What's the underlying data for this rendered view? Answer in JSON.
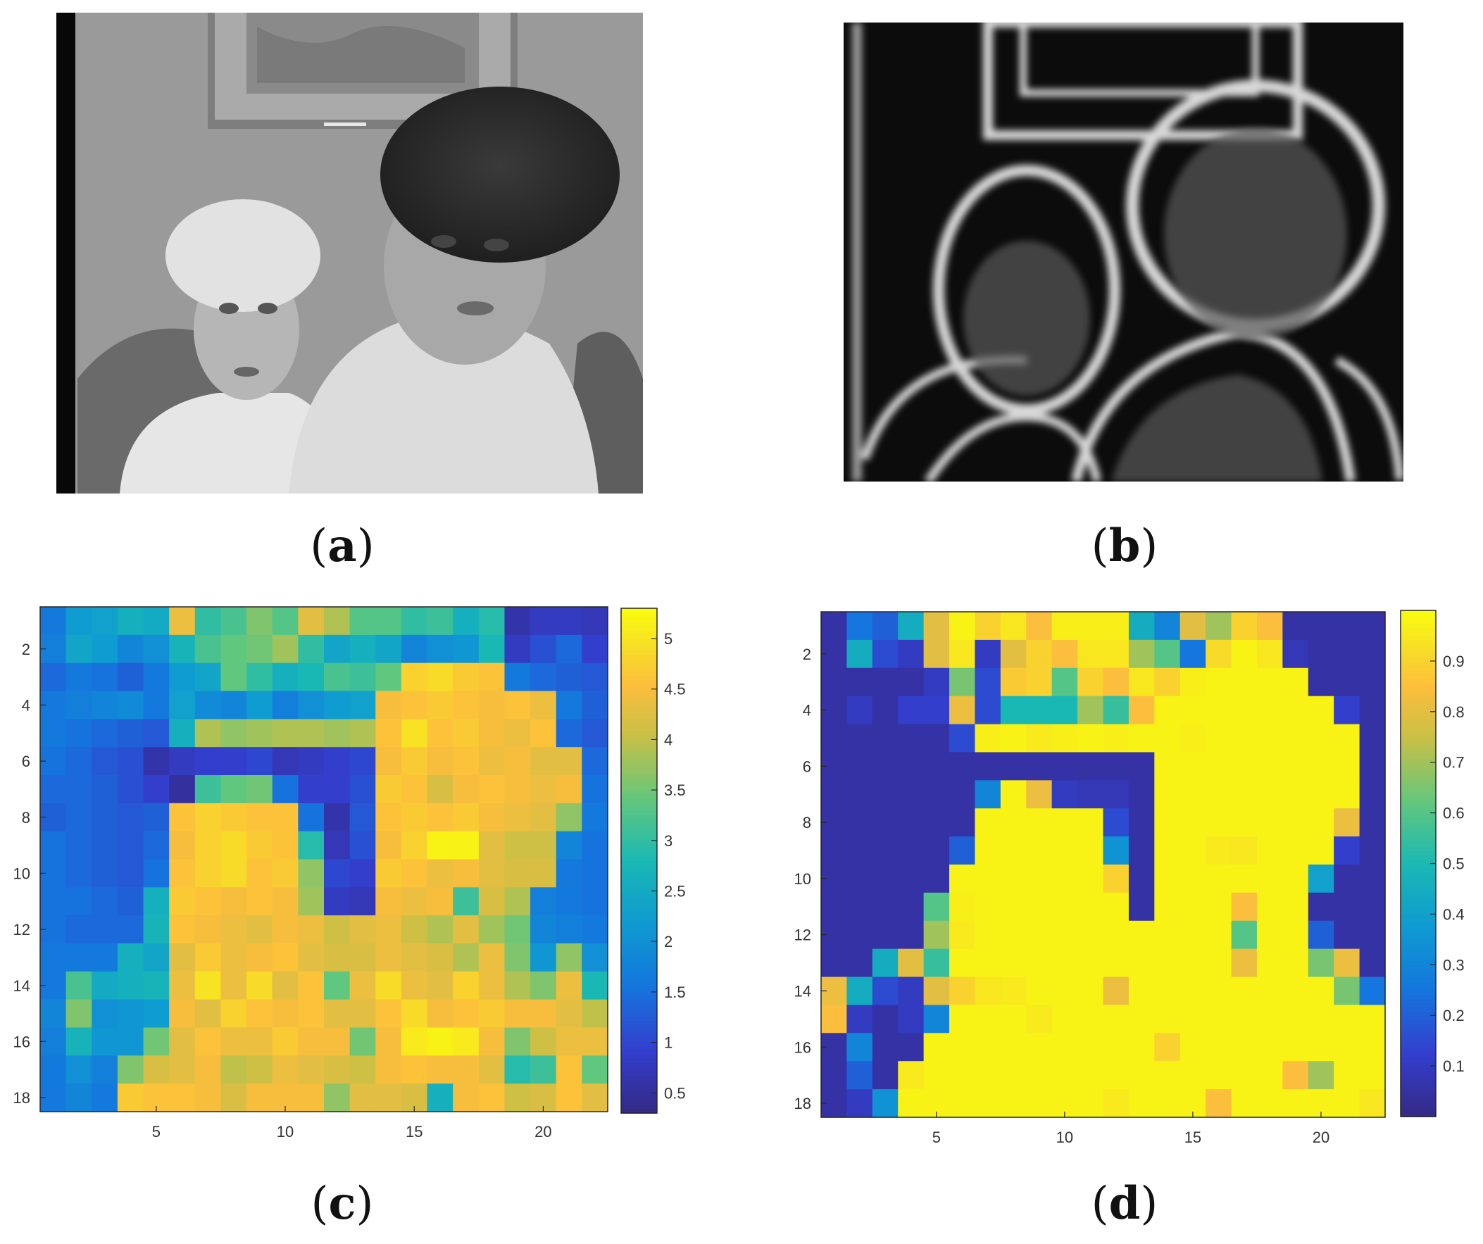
{
  "panels": {
    "a": {
      "paren_open": "(",
      "letter": "a",
      "paren_close": ")"
    },
    "b": {
      "paren_open": "(",
      "letter": "b",
      "paren_close": ")"
    },
    "c": {
      "paren_open": "(",
      "letter": "c",
      "paren_close": ")"
    },
    "d": {
      "paren_open": "(",
      "letter": "d",
      "paren_close": ")"
    }
  },
  "chart_data": [
    {
      "type": "heatmap",
      "panel": "c",
      "colormap": "parula",
      "xlim": [
        0.5,
        22.5
      ],
      "ylim": [
        18.5,
        0.5
      ],
      "xticks": [
        5,
        10,
        15,
        20
      ],
      "yticks": [
        2,
        4,
        6,
        8,
        10,
        12,
        14,
        16,
        18
      ],
      "clim": [
        0.3,
        5.3
      ],
      "colorbar_ticks": [
        0.5,
        1,
        1.5,
        2,
        2.5,
        3,
        3.5,
        4,
        4.5,
        5
      ],
      "rows": [
        [
          1.6,
          2.2,
          2.3,
          2.6,
          2.5,
          4.4,
          3.0,
          3.2,
          3.6,
          3.3,
          4.3,
          3.9,
          3.3,
          3.3,
          3.0,
          3.1,
          2.6,
          2.9,
          0.6,
          0.8,
          0.8,
          0.7
        ],
        [
          1.7,
          2.4,
          2.2,
          1.8,
          2.0,
          2.7,
          3.2,
          3.4,
          3.5,
          3.8,
          3.0,
          2.4,
          2.6,
          2.4,
          1.8,
          2.0,
          2.1,
          2.8,
          0.8,
          1.1,
          1.4,
          0.9
        ],
        [
          1.4,
          1.6,
          1.5,
          1.3,
          1.6,
          2.2,
          2.4,
          3.4,
          3.0,
          2.6,
          2.8,
          3.2,
          3.1,
          3.4,
          4.8,
          4.9,
          4.7,
          4.6,
          1.6,
          1.4,
          1.3,
          1.2
        ],
        [
          1.6,
          1.7,
          1.8,
          1.9,
          1.6,
          2.3,
          1.9,
          1.8,
          2.2,
          1.7,
          2.0,
          2.2,
          2.3,
          4.5,
          4.6,
          4.7,
          4.6,
          4.5,
          4.6,
          4.4,
          1.6,
          1.3
        ],
        [
          1.6,
          1.5,
          1.4,
          1.3,
          1.2,
          2.6,
          3.9,
          3.7,
          3.8,
          3.9,
          3.9,
          3.8,
          3.9,
          4.6,
          5.0,
          4.6,
          4.7,
          4.5,
          4.4,
          4.6,
          1.4,
          1.2
        ],
        [
          1.5,
          1.4,
          1.2,
          1.1,
          0.6,
          0.8,
          0.9,
          0.9,
          1.0,
          0.7,
          0.8,
          0.9,
          1.0,
          4.5,
          4.7,
          4.5,
          4.6,
          4.4,
          4.5,
          4.3,
          4.3,
          1.4
        ],
        [
          1.4,
          1.4,
          1.3,
          1.1,
          0.9,
          0.5,
          3.1,
          3.4,
          3.5,
          1.5,
          0.9,
          0.9,
          1.1,
          4.7,
          4.6,
          4.2,
          4.5,
          4.6,
          4.5,
          4.4,
          4.5,
          1.5
        ],
        [
          1.3,
          1.4,
          1.3,
          1.2,
          1.3,
          4.6,
          4.8,
          4.7,
          4.6,
          4.6,
          1.5,
          0.6,
          1.2,
          4.6,
          4.7,
          4.6,
          4.7,
          4.5,
          4.4,
          4.3,
          3.7,
          1.6
        ],
        [
          1.5,
          1.4,
          1.3,
          1.2,
          1.4,
          4.5,
          4.8,
          4.9,
          4.7,
          4.6,
          2.9,
          0.7,
          1.1,
          4.5,
          4.8,
          5.2,
          5.2,
          4.3,
          4.1,
          4.1,
          1.8,
          1.5
        ],
        [
          1.5,
          1.4,
          1.3,
          1.2,
          1.5,
          4.6,
          4.8,
          4.9,
          4.6,
          4.7,
          3.7,
          1.0,
          0.9,
          4.7,
          4.6,
          4.4,
          4.5,
          4.3,
          4.2,
          4.2,
          1.6,
          1.5
        ],
        [
          1.5,
          1.5,
          1.4,
          1.3,
          2.6,
          4.7,
          4.6,
          4.5,
          4.6,
          4.5,
          3.8,
          0.8,
          0.7,
          4.5,
          4.4,
          4.5,
          3.1,
          4.2,
          3.9,
          1.7,
          1.6,
          1.5
        ],
        [
          1.5,
          1.4,
          1.4,
          1.4,
          2.7,
          4.6,
          4.5,
          4.4,
          4.3,
          4.5,
          4.4,
          4.1,
          4.3,
          4.4,
          4.1,
          3.9,
          4.3,
          3.8,
          3.5,
          1.8,
          1.7,
          1.6
        ],
        [
          1.6,
          1.6,
          1.6,
          2.6,
          2.4,
          4.3,
          4.7,
          4.4,
          4.5,
          4.6,
          4.3,
          4.2,
          4.2,
          4.4,
          4.3,
          4.2,
          3.9,
          4.4,
          3.6,
          2.1,
          3.7,
          2.0
        ],
        [
          1.6,
          3.2,
          2.5,
          2.6,
          2.7,
          4.4,
          5.0,
          4.4,
          4.9,
          4.3,
          4.6,
          3.4,
          4.4,
          4.9,
          4.4,
          4.3,
          4.8,
          4.4,
          3.9,
          3.6,
          4.4,
          2.8
        ],
        [
          1.8,
          3.6,
          2.0,
          2.1,
          2.2,
          4.5,
          4.3,
          4.8,
          4.6,
          4.5,
          4.6,
          4.3,
          4.3,
          4.6,
          4.9,
          4.5,
          4.6,
          4.7,
          4.5,
          4.5,
          4.3,
          4.0
        ],
        [
          1.7,
          2.7,
          2.1,
          2.1,
          3.5,
          4.3,
          4.6,
          4.4,
          4.4,
          4.7,
          4.5,
          4.5,
          3.5,
          4.5,
          5.1,
          5.2,
          5.1,
          4.5,
          3.6,
          4.1,
          4.4,
          4.4
        ],
        [
          1.6,
          2.0,
          1.7,
          3.6,
          4.2,
          4.3,
          4.5,
          4.0,
          4.1,
          4.4,
          4.3,
          4.2,
          4.1,
          4.5,
          4.6,
          4.5,
          4.5,
          4.3,
          2.9,
          3.1,
          4.6,
          3.4
        ],
        [
          1.6,
          1.8,
          1.6,
          4.7,
          4.6,
          4.6,
          4.5,
          4.2,
          4.5,
          4.5,
          4.5,
          3.7,
          4.3,
          4.3,
          4.2,
          2.6,
          4.5,
          4.6,
          4.1,
          4.2,
          4.6,
          4.3
        ]
      ]
    },
    {
      "type": "heatmap",
      "panel": "d",
      "colormap": "parula",
      "xlim": [
        0.5,
        22.5
      ],
      "ylim": [
        18.5,
        0.5
      ],
      "xticks": [
        5,
        10,
        15,
        20
      ],
      "yticks": [
        2,
        4,
        6,
        8,
        10,
        12,
        14,
        16,
        18
      ],
      "clim": [
        0,
        1
      ],
      "colorbar_ticks": [
        0.1,
        0.2,
        0.3,
        0.4,
        0.5,
        0.6,
        0.7,
        0.8,
        0.9
      ],
      "rows": [
        [
          0.05,
          0.25,
          0.2,
          0.45,
          0.8,
          0.98,
          0.9,
          0.95,
          0.85,
          0.97,
          0.97,
          0.97,
          0.45,
          0.3,
          0.8,
          0.7,
          0.9,
          0.85,
          0.05,
          0.05,
          0.05,
          0.05
        ],
        [
          0.05,
          0.45,
          0.15,
          0.1,
          0.8,
          0.95,
          0.1,
          0.8,
          0.9,
          0.85,
          0.95,
          0.95,
          0.7,
          0.6,
          0.25,
          0.92,
          0.98,
          0.95,
          0.08,
          0.05,
          0.05,
          0.05
        ],
        [
          0.05,
          0.05,
          0.05,
          0.05,
          0.1,
          0.65,
          0.15,
          0.88,
          0.9,
          0.6,
          0.9,
          0.85,
          0.95,
          0.9,
          0.97,
          0.98,
          0.98,
          0.98,
          0.98,
          0.05,
          0.05,
          0.05
        ],
        [
          0.05,
          0.1,
          0.05,
          0.12,
          0.12,
          0.82,
          0.15,
          0.5,
          0.5,
          0.5,
          0.7,
          0.55,
          0.85,
          0.98,
          0.98,
          0.98,
          0.98,
          0.98,
          0.98,
          0.98,
          0.12,
          0.05
        ],
        [
          0.05,
          0.05,
          0.05,
          0.05,
          0.05,
          0.15,
          0.97,
          0.98,
          0.96,
          0.97,
          0.98,
          0.97,
          0.98,
          0.98,
          0.97,
          0.98,
          0.98,
          0.98,
          0.98,
          0.98,
          0.98,
          0.05
        ],
        [
          0.05,
          0.05,
          0.05,
          0.05,
          0.05,
          0.05,
          0.05,
          0.05,
          0.05,
          0.05,
          0.05,
          0.05,
          0.05,
          0.98,
          0.98,
          0.98,
          0.98,
          0.98,
          0.98,
          0.98,
          0.98,
          0.05
        ],
        [
          0.05,
          0.05,
          0.05,
          0.05,
          0.05,
          0.05,
          0.3,
          0.98,
          0.82,
          0.1,
          0.08,
          0.08,
          0.05,
          0.98,
          0.98,
          0.98,
          0.98,
          0.98,
          0.98,
          0.98,
          0.98,
          0.05
        ],
        [
          0.05,
          0.05,
          0.05,
          0.05,
          0.05,
          0.05,
          0.98,
          0.98,
          0.98,
          0.98,
          0.98,
          0.15,
          0.05,
          0.98,
          0.98,
          0.98,
          0.98,
          0.98,
          0.98,
          0.98,
          0.82,
          0.05
        ],
        [
          0.05,
          0.05,
          0.05,
          0.05,
          0.05,
          0.2,
          0.98,
          0.98,
          0.98,
          0.98,
          0.98,
          0.35,
          0.05,
          0.98,
          0.98,
          0.96,
          0.95,
          0.98,
          0.98,
          0.98,
          0.12,
          0.05
        ],
        [
          0.05,
          0.05,
          0.05,
          0.05,
          0.05,
          0.98,
          0.98,
          0.98,
          0.98,
          0.98,
          0.98,
          0.9,
          0.05,
          0.98,
          0.98,
          0.98,
          0.98,
          0.98,
          0.98,
          0.4,
          0.05,
          0.05
        ],
        [
          0.05,
          0.05,
          0.05,
          0.05,
          0.6,
          0.97,
          0.98,
          0.98,
          0.98,
          0.98,
          0.98,
          0.98,
          0.05,
          0.98,
          0.98,
          0.98,
          0.85,
          0.98,
          0.98,
          0.05,
          0.05,
          0.05
        ],
        [
          0.05,
          0.05,
          0.05,
          0.05,
          0.7,
          0.96,
          0.98,
          0.98,
          0.98,
          0.98,
          0.98,
          0.98,
          0.98,
          0.98,
          0.98,
          0.98,
          0.6,
          0.98,
          0.98,
          0.2,
          0.05,
          0.05
        ],
        [
          0.05,
          0.05,
          0.45,
          0.8,
          0.55,
          0.98,
          0.98,
          0.98,
          0.98,
          0.98,
          0.98,
          0.98,
          0.98,
          0.98,
          0.98,
          0.98,
          0.82,
          0.98,
          0.98,
          0.65,
          0.82,
          0.05
        ],
        [
          0.82,
          0.45,
          0.15,
          0.1,
          0.8,
          0.9,
          0.95,
          0.96,
          0.98,
          0.98,
          0.98,
          0.82,
          0.98,
          0.98,
          0.98,
          0.98,
          0.98,
          0.98,
          0.98,
          0.98,
          0.65,
          0.25
        ],
        [
          0.85,
          0.1,
          0.05,
          0.1,
          0.3,
          0.98,
          0.98,
          0.98,
          0.96,
          0.98,
          0.98,
          0.98,
          0.98,
          0.98,
          0.98,
          0.98,
          0.98,
          0.98,
          0.98,
          0.98,
          0.98,
          0.98
        ],
        [
          0.05,
          0.3,
          0.05,
          0.05,
          0.98,
          0.98,
          0.98,
          0.98,
          0.98,
          0.98,
          0.98,
          0.98,
          0.98,
          0.9,
          0.98,
          0.98,
          0.98,
          0.98,
          0.98,
          0.98,
          0.98,
          0.98
        ],
        [
          0.05,
          0.2,
          0.05,
          0.96,
          0.98,
          0.98,
          0.98,
          0.98,
          0.98,
          0.98,
          0.98,
          0.98,
          0.98,
          0.98,
          0.98,
          0.98,
          0.98,
          0.98,
          0.85,
          0.7,
          0.98,
          0.98
        ],
        [
          0.05,
          0.1,
          0.35,
          0.98,
          0.98,
          0.98,
          0.98,
          0.98,
          0.98,
          0.98,
          0.98,
          0.96,
          0.98,
          0.98,
          0.98,
          0.85,
          0.98,
          0.98,
          0.98,
          0.98,
          0.98,
          0.95
        ]
      ]
    }
  ]
}
